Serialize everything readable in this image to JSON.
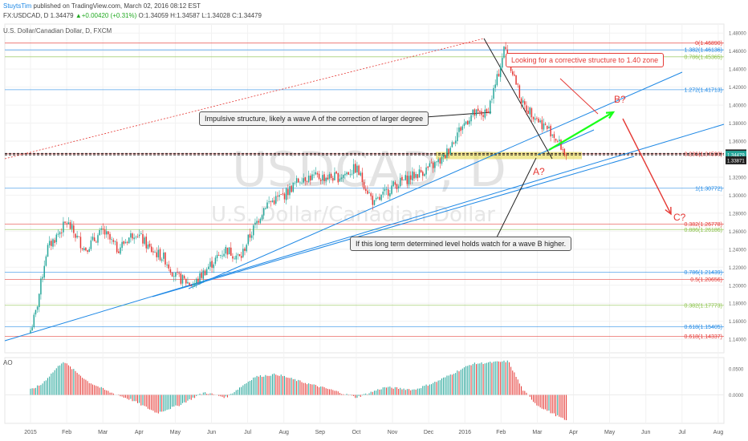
{
  "header": {
    "author": "StuytsTim",
    "published": "published on TradingView.com, March 02, 2016 08:12 EST",
    "symbol_line": "FX:USDCAD, D 1.34479",
    "change": "▲+0.00420 (+0.31%)",
    "ohlc": "O:1.34059 H:1.34587 L:1.34028 C:1.34479"
  },
  "watermark": {
    "big": "USDCAD, D",
    "small": "U.S. Dollar/Canadian Dollar"
  },
  "chart_data": {
    "type": "candlestick",
    "title": "U.S. Dollar/Canadian Dollar, D, FXCM",
    "x_tick_labels": [
      "2015",
      "Feb",
      "Mar",
      "Apr",
      "May",
      "Jun",
      "Jul",
      "Aug",
      "Sep",
      "Oct",
      "Nov",
      "Dec",
      "2016",
      "Feb",
      "Mar",
      "Apr",
      "May",
      "Jun",
      "Jul",
      "Aug"
    ],
    "x_tick_month_index": [
      0,
      1,
      2,
      3,
      4,
      5,
      6,
      7,
      8,
      9,
      10,
      11,
      12,
      13,
      14,
      15,
      16,
      17,
      18,
      19
    ],
    "ylim": [
      1.125,
      1.49
    ],
    "y_ticks": [
      1.48,
      1.46,
      1.44,
      1.42,
      1.4,
      1.38,
      1.36,
      1.32,
      1.3,
      1.28,
      1.26,
      1.24,
      1.22,
      1.2,
      1.18,
      1.16,
      1.14
    ],
    "y_tick_labels": [
      "1.48000",
      "1.46000",
      "1.44000",
      "1.42000",
      "1.40000",
      "1.38000",
      "1.36000",
      "1.32000",
      "1.30000",
      "1.28000",
      "1.26000",
      "1.24000",
      "1.22000",
      "1.20000",
      "1.18000",
      "1.16000",
      "1.14000"
    ],
    "price_badges": [
      {
        "value": 1.34633,
        "label": "1.34633",
        "color": "#222222"
      },
      {
        "value": 1.34479,
        "label": "1.34479",
        "color": "#26a69a"
      },
      {
        "value": 1.33871,
        "label": "1.33871",
        "color": "#222222"
      }
    ],
    "fib_levels": [
      {
        "value": 1.4689,
        "label": "0(1.46890)",
        "color": "#e53935"
      },
      {
        "value": 1.46136,
        "label": "1.382(1.46136)",
        "color": "#1e88e5"
      },
      {
        "value": 1.45365,
        "label": "0.786(1.45365)",
        "color": "#8bc34a"
      },
      {
        "value": 1.41713,
        "label": "1.272(1.41713)",
        "color": "#1e88e5"
      },
      {
        "value": 1.3459,
        "label": "0.236(1.34590)",
        "color": "#e53935"
      },
      {
        "value": 1.30772,
        "label": "1(1.30772)",
        "color": "#1e88e5"
      },
      {
        "value": 1.26778,
        "label": "0.382(1.26778)",
        "color": "#e53935"
      },
      {
        "value": 1.26186,
        "label": "0.886(1.26186)",
        "color": "#8bc34a"
      },
      {
        "value": 1.21439,
        "label": "0.786(1.21439)",
        "color": "#1e88e5"
      },
      {
        "value": 1.20656,
        "label": "0.5(1.20656)",
        "color": "#e53935"
      },
      {
        "value": 1.17773,
        "label": "0.382(1.17773)",
        "color": "#8bc34a"
      },
      {
        "value": 1.15405,
        "label": "0.618(1.15405)",
        "color": "#1e88e5"
      },
      {
        "value": 1.14337,
        "label": "0.618(1.14337)",
        "color": "#e53935"
      }
    ],
    "price_anchors": [
      [
        0,
        1.15
      ],
      [
        0.15,
        1.17
      ],
      [
        0.45,
        1.24
      ],
      [
        1.0,
        1.27
      ],
      [
        1.5,
        1.24
      ],
      [
        2.0,
        1.26
      ],
      [
        2.4,
        1.24
      ],
      [
        2.9,
        1.26
      ],
      [
        3.3,
        1.24
      ],
      [
        3.7,
        1.23
      ],
      [
        4.0,
        1.21
      ],
      [
        4.5,
        1.2
      ],
      [
        4.9,
        1.22
      ],
      [
        5.4,
        1.24
      ],
      [
        5.8,
        1.23
      ],
      [
        6.0,
        1.25
      ],
      [
        6.5,
        1.29
      ],
      [
        7.0,
        1.3
      ],
      [
        7.5,
        1.32
      ],
      [
        8.0,
        1.32
      ],
      [
        8.5,
        1.32
      ],
      [
        9.0,
        1.33
      ],
      [
        9.5,
        1.29
      ],
      [
        10.0,
        1.31
      ],
      [
        10.5,
        1.32
      ],
      [
        11.0,
        1.33
      ],
      [
        11.4,
        1.34
      ],
      [
        11.8,
        1.37
      ],
      [
        12.2,
        1.39
      ],
      [
        12.6,
        1.39
      ],
      [
        12.9,
        1.43
      ],
      [
        13.1,
        1.465
      ],
      [
        13.3,
        1.44
      ],
      [
        13.6,
        1.4
      ],
      [
        13.9,
        1.39
      ],
      [
        14.1,
        1.38
      ],
      [
        14.4,
        1.37
      ],
      [
        14.8,
        1.3448
      ]
    ],
    "ao": {
      "label": "AO",
      "ylim": [
        -0.055,
        0.072
      ],
      "y_ticks": [
        0.05,
        0.0
      ],
      "y_tick_labels": [
        "0.0500",
        "0.0000"
      ],
      "anchors": [
        [
          0,
          0.01
        ],
        [
          0.3,
          0.02
        ],
        [
          0.9,
          0.065
        ],
        [
          1.6,
          0.025
        ],
        [
          2.2,
          0.005
        ],
        [
          2.8,
          -0.01
        ],
        [
          3.5,
          -0.035
        ],
        [
          4.1,
          -0.02
        ],
        [
          4.8,
          0.005
        ],
        [
          5.4,
          -0.005
        ],
        [
          6.2,
          0.035
        ],
        [
          6.8,
          0.04
        ],
        [
          7.5,
          0.025
        ],
        [
          8.3,
          0.01
        ],
        [
          9.0,
          -0.005
        ],
        [
          9.8,
          0.015
        ],
        [
          10.6,
          0.01
        ],
        [
          11.2,
          0.025
        ],
        [
          12.2,
          0.06
        ],
        [
          13.2,
          0.065
        ],
        [
          13.6,
          0.01
        ],
        [
          14.0,
          -0.02
        ],
        [
          14.8,
          -0.05
        ]
      ]
    },
    "annotations": [
      {
        "text": "B?",
        "color": "#e53935"
      },
      {
        "text": "A?",
        "color": "#e53935"
      },
      {
        "text": "C?",
        "color": "#e53935"
      }
    ]
  },
  "callouts": {
    "impulsive": "Impulsive structure, likely a wave A of the correction of larger degree",
    "corrective": "Looking for a corrective structure to 1.40 zone",
    "long_term": "If this long term determined level holds watch for a wave B higher."
  },
  "colors": {
    "up": "#26a69a",
    "down": "#e53935",
    "trendline": "#1e88e5",
    "arrow_green": "#1aff1a",
    "arrow_red": "#e53935",
    "zone": "#e8dc5a"
  }
}
